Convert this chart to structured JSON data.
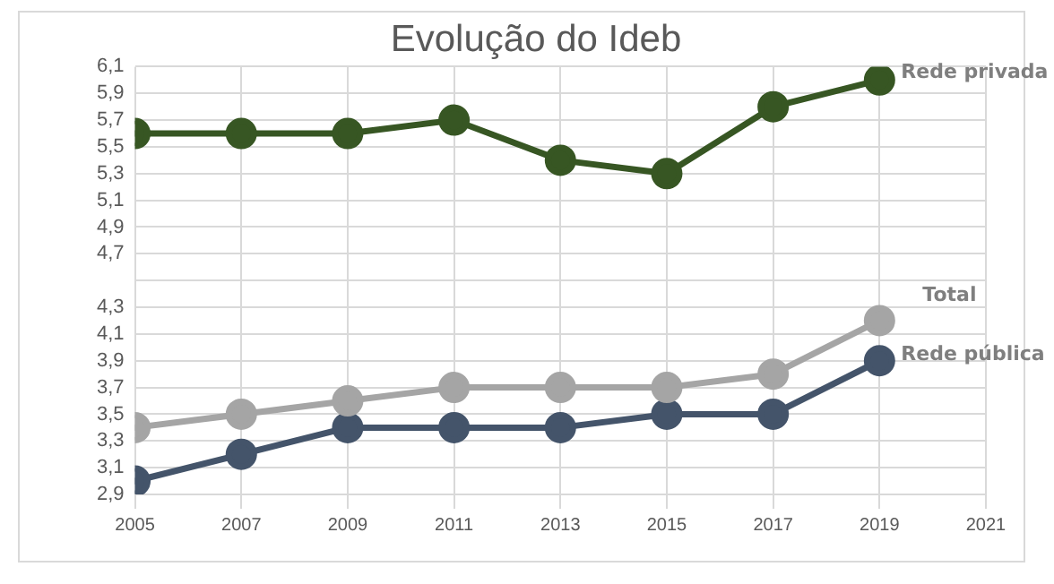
{
  "chart_data": {
    "type": "line",
    "title": "Evolução do Ideb",
    "x": [
      2005,
      2007,
      2009,
      2011,
      2013,
      2015,
      2017,
      2019
    ],
    "series": [
      {
        "name": "Rede privada",
        "color": "#375623",
        "values": [
          5.6,
          5.6,
          5.6,
          5.7,
          5.4,
          5.3,
          5.8,
          6.0
        ]
      },
      {
        "name": "Total",
        "color": "#a5a5a5",
        "values": [
          3.4,
          3.5,
          3.6,
          3.7,
          3.7,
          3.7,
          3.8,
          4.2
        ]
      },
      {
        "name": "Rede pública",
        "color": "#44546a",
        "values": [
          3.0,
          3.2,
          3.4,
          3.4,
          3.4,
          3.5,
          3.5,
          3.9
        ]
      }
    ],
    "xlim": [
      2005,
      2021
    ],
    "xticks": [
      2005,
      2007,
      2009,
      2011,
      2013,
      2015,
      2017,
      2019,
      2021
    ],
    "ylim": [
      2.9,
      6.1
    ],
    "yticks": [
      {
        "value": 2.9,
        "label": "2,9"
      },
      {
        "value": 3.1,
        "label": "3,1"
      },
      {
        "value": 3.3,
        "label": "3,3"
      },
      {
        "value": 3.5,
        "label": "3,5"
      },
      {
        "value": 3.7,
        "label": "3,7"
      },
      {
        "value": 3.9,
        "label": "3,9"
      },
      {
        "value": 4.1,
        "label": "4,1"
      },
      {
        "value": 4.3,
        "label": "4,3"
      },
      {
        "value": 4.5,
        "label": null
      },
      {
        "value": 4.7,
        "label": "4,7"
      },
      {
        "value": 4.9,
        "label": "4,9"
      },
      {
        "value": 5.1,
        "label": "5,1"
      },
      {
        "value": 5.3,
        "label": "5,3"
      },
      {
        "value": 5.5,
        "label": "5,5"
      },
      {
        "value": 5.7,
        "label": "5,7"
      },
      {
        "value": 5.9,
        "label": "5,9"
      },
      {
        "value": 6.1,
        "label": "6,1"
      }
    ],
    "grid": true,
    "legend": false,
    "marker": "circle",
    "line_style": "solid"
  }
}
